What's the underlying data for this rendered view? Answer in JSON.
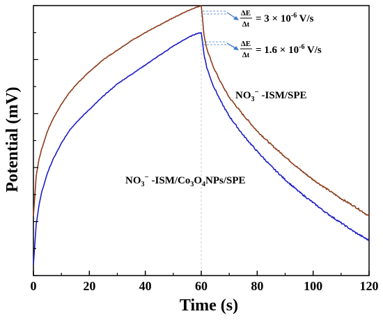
{
  "chart_data": {
    "type": "line",
    "xlabel": "Time (s)",
    "ylabel": "Potential (mV)",
    "xlim": [
      0,
      120
    ],
    "ylim": [
      0,
      100
    ],
    "xticks": [
      "0",
      "20",
      "40",
      "60",
      "80",
      "100",
      "120"
    ],
    "yticks_labeled": false,
    "grid": false,
    "legend": "none",
    "series": [
      {
        "name": "NO3⁻-ISM/SPE",
        "color": "#8b3a1a",
        "x": [
          0,
          1,
          2,
          3,
          5,
          7,
          10,
          13,
          16,
          20,
          25,
          30,
          35,
          40,
          45,
          50,
          55,
          58,
          60,
          61,
          62,
          64,
          67,
          70,
          75,
          80,
          85,
          90,
          95,
          100,
          105,
          110,
          115,
          120
        ],
        "y": [
          22,
          37,
          43,
          47,
          53.5,
          58,
          63.5,
          68,
          71.5,
          75.5,
          80,
          83.5,
          87,
          90,
          92.7,
          95.5,
          98,
          99.3,
          100,
          89,
          84,
          78,
          71.5,
          66,
          59.5,
          53.5,
          48.5,
          44,
          39.5,
          35.5,
          32,
          28.5,
          25.5,
          22
        ]
      },
      {
        "name": "NO3⁻-ISM/Co3O4NPs/SPE",
        "color": "#1c1cc8",
        "x": [
          0,
          1,
          2,
          3,
          5,
          7,
          10,
          13,
          16,
          20,
          25,
          30,
          35,
          40,
          45,
          50,
          55,
          58,
          60,
          61,
          62,
          64,
          67,
          70,
          75,
          80,
          85,
          90,
          95,
          100,
          105,
          110,
          115,
          120
        ],
        "y": [
          4,
          19,
          26,
          31,
          38,
          43,
          49,
          54,
          57.5,
          61.5,
          66.5,
          71,
          74.5,
          78,
          81.5,
          85,
          88,
          89.5,
          90,
          82,
          77,
          71,
          64.5,
          59,
          52,
          46,
          40.5,
          35.5,
          31,
          27,
          23,
          19.5,
          16,
          13
        ]
      }
    ],
    "annotations": {
      "rate1": {
        "num": "ΔE",
        "den": "Δt",
        "eq": "= 3 × 10",
        "exp": "-6",
        "unit": " V/s"
      },
      "rate2": {
        "num": "ΔE",
        "den": "Δt",
        "eq": "= 1.6 × 10",
        "exp": "-6",
        "unit": " V/s"
      },
      "label1": {
        "pre": "NO",
        "sub": "3",
        "sup": "−",
        "post": " -ISM/SPE"
      },
      "label2": {
        "pre": "NO",
        "sub1": "3",
        "sup": "−",
        "mid": " -ISM/Co",
        "sub2": "3",
        "mid2": "O",
        "sub3": "4",
        "post": "NPs/SPE"
      }
    }
  }
}
